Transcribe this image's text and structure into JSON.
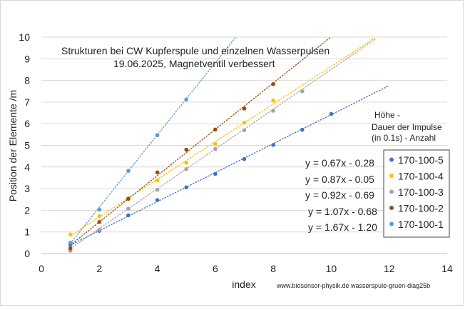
{
  "chart_data": {
    "type": "scatter",
    "title_lines": [
      "Strukturen bei CW Kupferspule und einzelnen Wasserpulsen",
      "19.06.2025, Magnetventil verbessert"
    ],
    "xlabel": "index",
    "ylabel": "Position der Elemente /m",
    "xlim": [
      0,
      14
    ],
    "ylim": [
      0,
      10
    ],
    "x_ticks": [
      "0",
      "2",
      "4",
      "6",
      "8",
      "10",
      "12",
      "14"
    ],
    "y_ticks": [
      "0",
      "1",
      "2",
      "3",
      "4",
      "5",
      "6",
      "7",
      "8",
      "9",
      "10"
    ],
    "grid": "horizontal",
    "legend_position": "right",
    "legend_note": [
      "Höhe -",
      "Dauer der Impulse",
      "(in 0.1s) -  Anzahl"
    ],
    "credit": "www.biosensor-physik.de  wasserspule-gruen-diag25b",
    "equations": [
      "y = 0.67x - 0.28",
      "y = 0.87x - 0.05",
      "y = 0.92x - 0.69",
      "y = 1.07x - 0.68",
      "y = 1.67x - 1.20"
    ],
    "series": [
      {
        "name": "170-100-5",
        "color": "#4472c4",
        "x": [
          1,
          2,
          3,
          4,
          5,
          6,
          7,
          8,
          9,
          10
        ],
        "y": [
          0.4,
          1.05,
          1.77,
          2.47,
          3.06,
          3.68,
          4.37,
          5.02,
          5.72,
          6.45
        ],
        "trend": {
          "slope": 0.67,
          "intercept": -0.28,
          "x_range": [
            1,
            12
          ]
        }
      },
      {
        "name": "170-100-4",
        "color": "#ffc000",
        "x": [
          1,
          2,
          3,
          4,
          5,
          6,
          7,
          8
        ],
        "y": [
          0.88,
          1.73,
          2.55,
          3.38,
          4.2,
          5.06,
          6.05,
          7.07
        ],
        "trend": {
          "slope": 0.87,
          "intercept": -0.05,
          "x_range": [
            1,
            11.5
          ]
        }
      },
      {
        "name": "170-100-3",
        "color": "#a5a5a5",
        "x": [
          1,
          2,
          3,
          4,
          5,
          6,
          7,
          8,
          9
        ],
        "y": [
          0.13,
          1.1,
          2.07,
          2.95,
          3.9,
          4.83,
          5.7,
          6.6,
          7.5
        ],
        "trend": {
          "slope": 0.92,
          "intercept": -0.69,
          "x_range": [
            1,
            11.5
          ]
        }
      },
      {
        "name": "170-100-2",
        "color": "#9e480e",
        "x": [
          1,
          2,
          3,
          4,
          5,
          6,
          7,
          8
        ],
        "y": [
          0.24,
          1.46,
          2.53,
          3.75,
          4.8,
          5.73,
          6.7,
          7.83
        ],
        "trend": {
          "slope": 1.07,
          "intercept": -0.68,
          "x_range": [
            1,
            10.2
          ]
        }
      },
      {
        "name": "170-100-1",
        "color": "#5b9bd5",
        "x": [
          1,
          2,
          3,
          4,
          5
        ],
        "y": [
          0.5,
          2.03,
          3.82,
          5.47,
          7.12
        ],
        "trend": {
          "slope": 1.67,
          "intercept": -1.2,
          "x_range": [
            1,
            6.7
          ]
        }
      }
    ]
  }
}
